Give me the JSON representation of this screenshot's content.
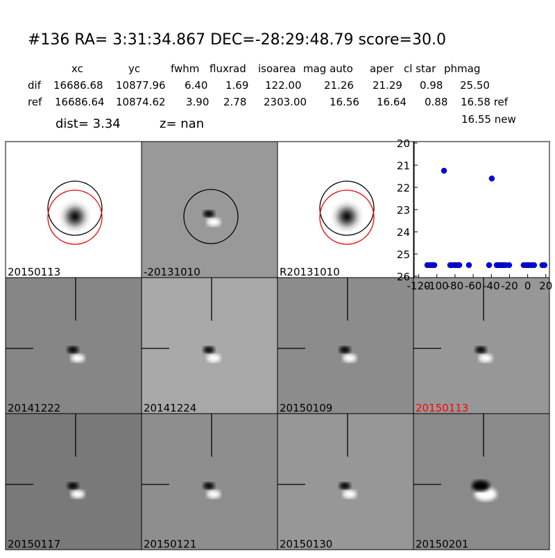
{
  "header": {
    "title": "#136   RA= 3:31:34.867 DEC=-28:29:48.79      score=30.0"
  },
  "table": {
    "columns": [
      "xc",
      "yc",
      "fwhm",
      "fluxrad",
      "isoarea",
      "mag auto",
      "aper",
      "cl star",
      "phmag"
    ],
    "rows": [
      [
        "dif",
        "16686.68",
        "10877.96",
        "6.40",
        "1.69",
        "122.00",
        "21.26",
        "21.29",
        "0.98",
        "25.50"
      ],
      [
        "ref",
        "16686.64",
        "10874.62",
        "3.90",
        "2.78",
        "2303.00",
        "16.56",
        "16.64",
        "0.88",
        "16.58 ref"
      ]
    ],
    "extra": "16.55 new",
    "dist": "dist=  3.34",
    "z": "z=   nan"
  },
  "panels": [
    "20150113",
    "-20131010",
    "R20131010",
    "20141222",
    "20141224",
    "20150109",
    "20150113",
    "20150117",
    "20150121",
    "20150130",
    "20150201"
  ],
  "chart_data": {
    "type": "scatter",
    "color": "#0000ff",
    "x": [
      -110.5,
      -107.4,
      -105,
      -102.8,
      -92.1,
      -85.3,
      -83,
      -80,
      -77.6,
      -75.3,
      -64.7,
      -42.5,
      -39.5,
      -34.1,
      -31.8,
      -29.5,
      -27.2,
      -24.2,
      -20.4,
      -4.4,
      -1.3,
      1,
      4,
      7,
      16.2,
      18.5
    ],
    "values": [
      25.5,
      25.5,
      25.5,
      25.5,
      21.25,
      25.5,
      25.5,
      25.5,
      25.5,
      25.5,
      25.5,
      25.5,
      21.6,
      25.5,
      25.5,
      25.5,
      25.5,
      25.5,
      25.5,
      25.5,
      25.5,
      25.5,
      25.5,
      25.5,
      25.5,
      25.5
    ],
    "errors": [
      0.05,
      0.05,
      0.05,
      0.05,
      0.1,
      0.05,
      0.05,
      0.05,
      0.05,
      0.05,
      0.05,
      0.05,
      0.12,
      0.05,
      0.05,
      0.05,
      0.05,
      0.05,
      0.05,
      0.05,
      0.05,
      0.05,
      0.05,
      0.05,
      0.05,
      0.05
    ],
    "xlim": [
      -125,
      24
    ],
    "ylim": [
      20,
      26
    ],
    "y_inverted": true,
    "xticks": [
      -120,
      -100,
      -80,
      -60,
      -40,
      -20,
      0,
      20
    ],
    "yticks": [
      20,
      21,
      22,
      23,
      24,
      25,
      26
    ]
  }
}
